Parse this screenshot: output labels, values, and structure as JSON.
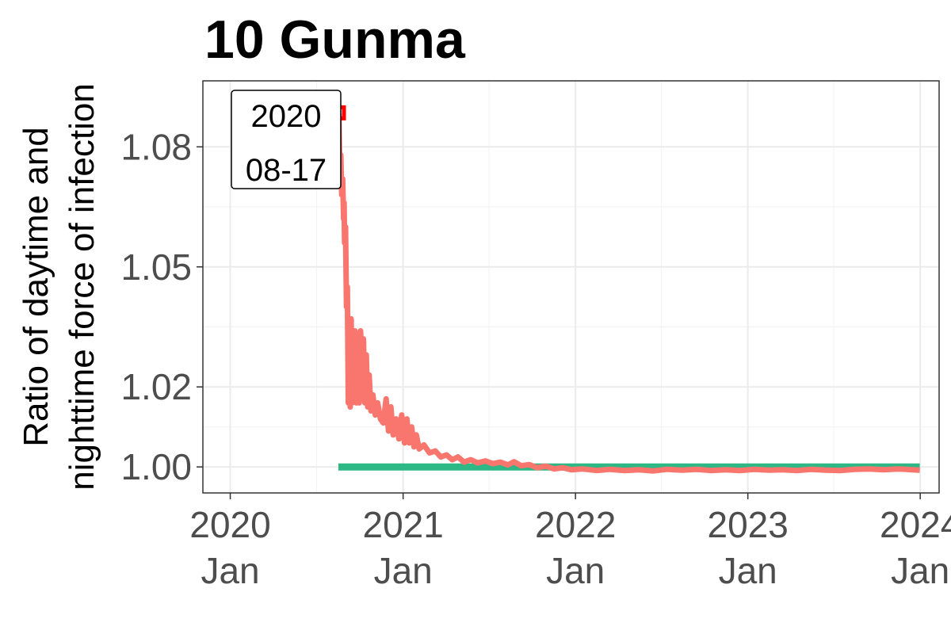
{
  "chart_data": {
    "type": "line",
    "title": "10 Gunma",
    "ylabel_lines": [
      "Ratio of daytime and",
      "nighttime force of infection"
    ],
    "xlabel": "",
    "x_ticks": [
      {
        "date": "2020-01-01",
        "year": "2020",
        "month": "Jan"
      },
      {
        "date": "2021-01-01",
        "year": "2021",
        "month": "Jan"
      },
      {
        "date": "2022-01-01",
        "year": "2022",
        "month": "Jan"
      },
      {
        "date": "2023-01-01",
        "year": "2023",
        "month": "Jan"
      },
      {
        "date": "2024-01-01",
        "year": "2024",
        "month": "Jan"
      }
    ],
    "y_ticks": [
      {
        "value": 1.0,
        "label": "1.00"
      },
      {
        "value": 1.02,
        "label": "1.02"
      },
      {
        "value": 1.05,
        "label": "1.05"
      },
      {
        "value": 1.08,
        "label": "1.08"
      }
    ],
    "xlim": [
      "2019-11-04",
      "2024-02-10"
    ],
    "ylim": [
      0.9935,
      1.0965
    ],
    "grid": true,
    "legend": "none",
    "series": [
      {
        "color": "#F8766D",
        "points": [
          [
            "2020-08-17",
            1.0885
          ],
          [
            "2020-08-18",
            1.088
          ],
          [
            "2020-08-19",
            1.081
          ],
          [
            "2020-08-20",
            1.074
          ],
          [
            "2020-08-22",
            1.078
          ],
          [
            "2020-08-24",
            1.068
          ],
          [
            "2020-08-26",
            1.072
          ],
          [
            "2020-08-28",
            1.062
          ],
          [
            "2020-08-29",
            1.066
          ],
          [
            "2020-08-30",
            1.056
          ],
          [
            "2020-09-01",
            1.06
          ],
          [
            "2020-09-03",
            1.04
          ],
          [
            "2020-09-05",
            1.045
          ],
          [
            "2020-09-07",
            1.016
          ],
          [
            "2020-09-09",
            1.035
          ],
          [
            "2020-09-11",
            1.015
          ],
          [
            "2020-09-13",
            1.037
          ],
          [
            "2020-09-15",
            1.016
          ],
          [
            "2020-09-17",
            1.032
          ],
          [
            "2020-09-19",
            1.017
          ],
          [
            "2020-09-21",
            1.034
          ],
          [
            "2020-09-24",
            1.016
          ],
          [
            "2020-09-27",
            1.031
          ],
          [
            "2020-09-30",
            1.016
          ],
          [
            "2020-10-03",
            1.034
          ],
          [
            "2020-10-06",
            1.017
          ],
          [
            "2020-10-09",
            1.032
          ],
          [
            "2020-10-12",
            1.016
          ],
          [
            "2020-10-15",
            1.028
          ],
          [
            "2020-10-18",
            1.015
          ],
          [
            "2020-10-21",
            1.023
          ],
          [
            "2020-10-25",
            1.014
          ],
          [
            "2020-10-29",
            1.018
          ],
          [
            "2020-11-03",
            1.013
          ],
          [
            "2020-11-08",
            1.016
          ],
          [
            "2020-11-14",
            1.012
          ],
          [
            "2020-11-20",
            1.011
          ],
          [
            "2020-11-26",
            1.017
          ],
          [
            "2020-12-01",
            1.009
          ],
          [
            "2020-12-06",
            1.015
          ],
          [
            "2020-12-11",
            1.008
          ],
          [
            "2020-12-17",
            1.012
          ],
          [
            "2020-12-23",
            1.007
          ],
          [
            "2020-12-29",
            1.013
          ],
          [
            "2021-01-04",
            1.006
          ],
          [
            "2021-01-09",
            1.012
          ],
          [
            "2021-01-14",
            1.006
          ],
          [
            "2021-01-19",
            1.01
          ],
          [
            "2021-01-24",
            1.005
          ],
          [
            "2021-01-29",
            1.008
          ],
          [
            "2021-02-04",
            1.0045
          ],
          [
            "2021-02-14",
            1.0055
          ],
          [
            "2021-02-26",
            1.0035
          ],
          [
            "2021-03-10",
            1.004
          ],
          [
            "2021-03-22",
            1.0025
          ],
          [
            "2021-04-03",
            1.003
          ],
          [
            "2021-04-15",
            1.0018
          ],
          [
            "2021-04-27",
            1.0025
          ],
          [
            "2021-05-10",
            1.0012
          ],
          [
            "2021-05-24",
            1.0018
          ],
          [
            "2021-06-08",
            1.001
          ],
          [
            "2021-06-24",
            1.0015
          ],
          [
            "2021-07-10",
            1.0008
          ],
          [
            "2021-07-26",
            1.0012
          ],
          [
            "2021-08-11",
            1.0005
          ],
          [
            "2021-08-24",
            1.0013
          ],
          [
            "2021-09-08",
            1.0003
          ],
          [
            "2021-09-25",
            1.0006
          ],
          [
            "2021-10-12",
            0.9998
          ],
          [
            "2021-10-30",
            1.0002
          ],
          [
            "2021-11-17",
            0.9995
          ],
          [
            "2021-12-05",
            0.9998
          ],
          [
            "2021-12-23",
            0.9993
          ],
          [
            "2022-01-15",
            0.9995
          ],
          [
            "2022-02-15",
            0.9991
          ],
          [
            "2022-03-15",
            0.9994
          ],
          [
            "2022-04-15",
            0.9991
          ],
          [
            "2022-05-15",
            0.9993
          ],
          [
            "2022-06-15",
            0.999
          ],
          [
            "2022-07-15",
            0.9994
          ],
          [
            "2022-08-15",
            0.9992
          ],
          [
            "2022-09-15",
            0.9994
          ],
          [
            "2022-10-15",
            0.9991
          ],
          [
            "2022-11-15",
            0.9993
          ],
          [
            "2022-12-15",
            0.9991
          ],
          [
            "2023-01-15",
            0.9994
          ],
          [
            "2023-02-15",
            0.9992
          ],
          [
            "2023-03-15",
            0.9993
          ],
          [
            "2023-04-15",
            0.9991
          ],
          [
            "2023-05-15",
            0.9994
          ],
          [
            "2023-06-15",
            0.9992
          ],
          [
            "2023-07-15",
            0.9991
          ],
          [
            "2023-08-15",
            0.9994
          ],
          [
            "2023-09-15",
            0.9995
          ],
          [
            "2023-10-15",
            0.9993
          ],
          [
            "2023-11-15",
            0.9995
          ],
          [
            "2023-12-15",
            0.9993
          ],
          [
            "2023-12-31",
            0.9992
          ]
        ]
      },
      {
        "color": "#2EB886",
        "points": [
          [
            "2020-08-17",
            1.0
          ],
          [
            "2023-12-31",
            1.0
          ]
        ]
      }
    ],
    "highlight_point": {
      "date": "2020-08-17",
      "value": 1.0885,
      "color": "#FF0000"
    },
    "annotation": {
      "lines": [
        "2020",
        "08-17"
      ]
    }
  }
}
